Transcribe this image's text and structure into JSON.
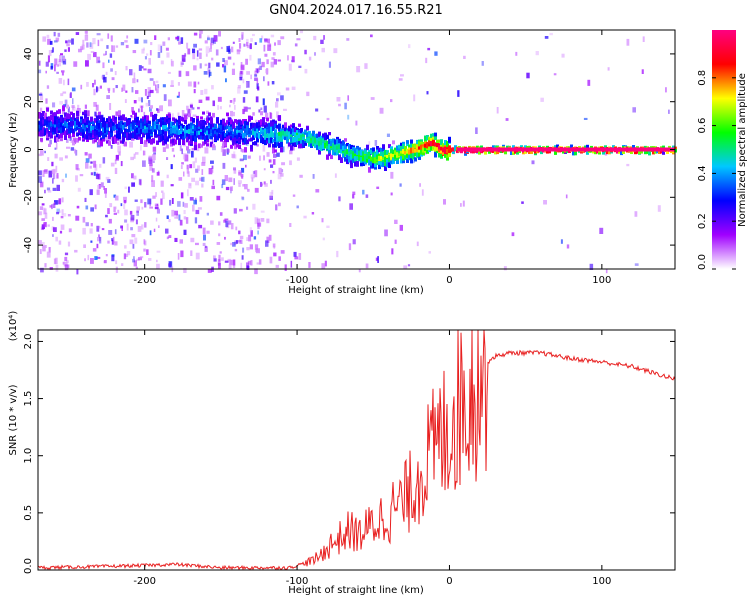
{
  "title": "GN04.2024.017.16.55.R21",
  "chart_data": [
    {
      "type": "heatmap",
      "xlabel": "Height of straight line (km)",
      "ylabel": "Frequency (Hz)",
      "xlim": [
        -270,
        148
      ],
      "ylim": [
        -50,
        50
      ],
      "xticks": [
        -200,
        -100,
        0,
        100
      ],
      "yticks": [
        -40,
        -20,
        0,
        20,
        40
      ],
      "grid": false,
      "colorbar": {
        "label": "Normalized spectral amplitude",
        "range": [
          0.0,
          1.0
        ],
        "ticks": [
          "0.0",
          "0.2",
          "0.4",
          "0.6",
          "0.8"
        ],
        "colors": [
          "#ffffff",
          "#a000ff",
          "#0000ff",
          "#00c8ff",
          "#00ff00",
          "#ffff00",
          "#ff0000",
          "#ff0080"
        ]
      },
      "ridge": {
        "x": [
          -270,
          -250,
          -230,
          -210,
          -190,
          -170,
          -150,
          -130,
          -110,
          -95,
          -85,
          -75,
          -65,
          -55,
          -48,
          -42,
          -36,
          -30,
          -24,
          -18,
          -14,
          -10,
          -5,
          0,
          10,
          30,
          60,
          100,
          148
        ],
        "freq": [
          10,
          10,
          9,
          9,
          9,
          8,
          8,
          7,
          6,
          5,
          3,
          1,
          -2,
          -3,
          -4,
          -3,
          -2,
          -1,
          0,
          1,
          3,
          2,
          0,
          0,
          0,
          0,
          0,
          0,
          0
        ],
        "amplitude": [
          0.3,
          0.35,
          0.35,
          0.35,
          0.4,
          0.4,
          0.35,
          0.4,
          0.5,
          0.55,
          0.55,
          0.55,
          0.55,
          0.6,
          0.65,
          0.7,
          0.7,
          0.75,
          0.8,
          0.85,
          0.9,
          0.9,
          0.95,
          1.0,
          1.0,
          1.0,
          1.0,
          1.0,
          1.0
        ]
      }
    },
    {
      "type": "line",
      "xlabel": "Height of straight line (km)",
      "ylabel": "SNR (10 * v/v)",
      "scale_label": "(x10⁴)",
      "xlim": [
        -270,
        148
      ],
      "ylim": [
        0,
        2.1
      ],
      "xticks": [
        -200,
        -100,
        0,
        100
      ],
      "yticks": [
        "0.0",
        "0.5",
        "1.0",
        "1.5",
        "2.0"
      ],
      "grid": false,
      "series": [
        {
          "color": "#e82020",
          "x": [
            -270,
            -230,
            -200,
            -180,
            -150,
            -120,
            -105,
            -100,
            -90,
            -85,
            -80,
            -75,
            -70,
            -65,
            -60,
            -55,
            -50,
            -45,
            -40,
            -35,
            -30,
            -25,
            -20,
            -15,
            -10,
            -5,
            0,
            5,
            10,
            15,
            20,
            25,
            30,
            40,
            60,
            80,
            100,
            120,
            140,
            148
          ],
          "y": [
            0.02,
            0.03,
            0.04,
            0.05,
            0.02,
            0.02,
            0.02,
            0.04,
            0.08,
            0.12,
            0.2,
            0.25,
            0.3,
            0.35,
            0.3,
            0.35,
            0.4,
            0.45,
            0.5,
            0.55,
            0.6,
            0.7,
            0.85,
            0.95,
            1.05,
            1.15,
            1.3,
            1.42,
            1.55,
            1.65,
            1.75,
            1.82,
            1.87,
            1.9,
            1.9,
            1.85,
            1.82,
            1.78,
            1.7,
            1.67
          ]
        }
      ]
    }
  ]
}
